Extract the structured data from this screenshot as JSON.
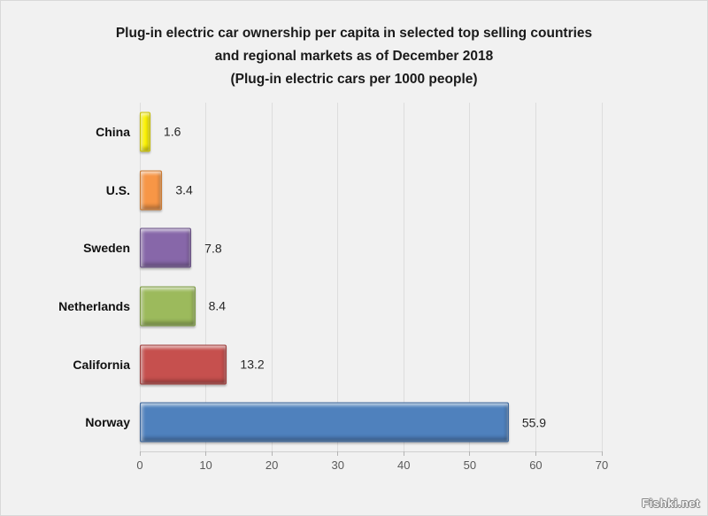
{
  "chart_data": {
    "type": "bar",
    "orientation": "horizontal",
    "title_lines": [
      "Plug-in electric car ownership per capita in selected top selling countries",
      "and regional markets as of December 2018",
      "(Plug-in electric cars per 1000 people)"
    ],
    "categories": [
      "China",
      "U.S.",
      "Sweden",
      "Netherlands",
      "California",
      "Norway"
    ],
    "values": [
      1.6,
      3.4,
      7.8,
      8.4,
      13.2,
      55.9
    ],
    "value_labels": [
      "1.6",
      "3.4",
      "7.8",
      "8.4",
      "13.2",
      "55.9"
    ],
    "bar_colors": [
      "#fdf400",
      "#f79646",
      "#8767a9",
      "#9cba5c",
      "#c6504e",
      "#4f81bd"
    ],
    "bar_edge_colors": [
      "#c8c000",
      "#c97a33",
      "#695284",
      "#7c9a43",
      "#9c3e3c",
      "#3b659a"
    ],
    "xlabel": "",
    "ylabel": "",
    "xlim": [
      0,
      70
    ],
    "x_ticks": [
      0,
      10,
      20,
      30,
      40,
      50,
      60,
      70
    ],
    "grid": true,
    "legend": false
  },
  "watermark": {
    "text": "Fishki.net"
  }
}
